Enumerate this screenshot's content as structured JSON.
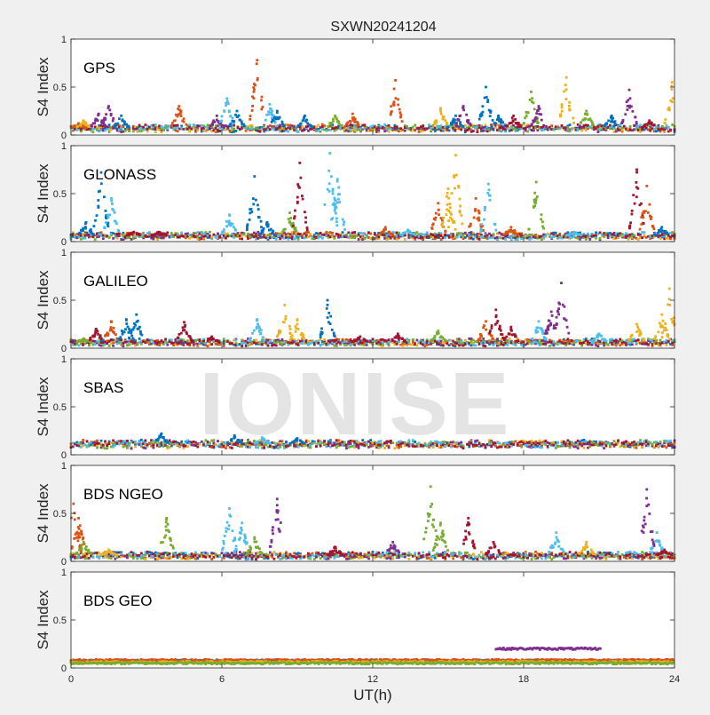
{
  "chart_data": {
    "type": "scatter",
    "title": "SXWN20241204",
    "xlabel": "UT(h)",
    "ylabel": "S4 Index",
    "xlim": [
      0,
      24
    ],
    "ylim": [
      0,
      1
    ],
    "xticks": [
      "0",
      "6",
      "12",
      "18",
      "24"
    ],
    "yticks": [
      "0",
      "0.5",
      "1"
    ],
    "colors": [
      "#0072BD",
      "#D95319",
      "#EDB120",
      "#7E2F8E",
      "#77AC30",
      "#4DBEEE",
      "#A2142F"
    ],
    "panels": [
      {
        "name": "GPS",
        "baseline": 0.07,
        "peaks": [
          {
            "x": 0.3,
            "y": 0.12,
            "c": 1
          },
          {
            "x": 0.5,
            "y": 0.15,
            "c": 2
          },
          {
            "x": 1.1,
            "y": 0.22,
            "c": 3
          },
          {
            "x": 1.5,
            "y": 0.3,
            "c": 3
          },
          {
            "x": 2.0,
            "y": 0.2,
            "c": 0
          },
          {
            "x": 4.3,
            "y": 0.3,
            "c": 1
          },
          {
            "x": 5.8,
            "y": 0.2,
            "c": 3
          },
          {
            "x": 6.2,
            "y": 0.38,
            "c": 5
          },
          {
            "x": 6.6,
            "y": 0.25,
            "c": 0
          },
          {
            "x": 7.4,
            "y": 0.78,
            "c": 1
          },
          {
            "x": 7.9,
            "y": 0.32,
            "c": 5
          },
          {
            "x": 8.2,
            "y": 0.25,
            "c": 0
          },
          {
            "x": 9.3,
            "y": 0.2,
            "c": 0
          },
          {
            "x": 10.5,
            "y": 0.2,
            "c": 4
          },
          {
            "x": 11.2,
            "y": 0.22,
            "c": 1
          },
          {
            "x": 12.9,
            "y": 0.57,
            "c": 1
          },
          {
            "x": 14.7,
            "y": 0.28,
            "c": 2
          },
          {
            "x": 15.3,
            "y": 0.2,
            "c": 0
          },
          {
            "x": 15.6,
            "y": 0.3,
            "c": 3
          },
          {
            "x": 16.5,
            "y": 0.5,
            "c": 0
          },
          {
            "x": 17.0,
            "y": 0.2,
            "c": 0
          },
          {
            "x": 17.6,
            "y": 0.2,
            "c": 6
          },
          {
            "x": 18.3,
            "y": 0.45,
            "c": 4
          },
          {
            "x": 18.6,
            "y": 0.3,
            "c": 3
          },
          {
            "x": 19.7,
            "y": 0.6,
            "c": 2
          },
          {
            "x": 20.5,
            "y": 0.25,
            "c": 4
          },
          {
            "x": 21.5,
            "y": 0.2,
            "c": 0
          },
          {
            "x": 22.2,
            "y": 0.47,
            "c": 3
          },
          {
            "x": 23.0,
            "y": 0.15,
            "c": 6
          },
          {
            "x": 23.9,
            "y": 0.55,
            "c": 2
          }
        ]
      },
      {
        "name": "GLONASS",
        "baseline": 0.06,
        "peaks": [
          {
            "x": 0.6,
            "y": 0.2,
            "c": 0
          },
          {
            "x": 1.2,
            "y": 0.72,
            "c": 0
          },
          {
            "x": 1.6,
            "y": 0.45,
            "c": 5
          },
          {
            "x": 2.5,
            "y": 0.1,
            "c": 6
          },
          {
            "x": 3.5,
            "y": 0.1,
            "c": 6
          },
          {
            "x": 6.3,
            "y": 0.28,
            "c": 5
          },
          {
            "x": 7.3,
            "y": 0.68,
            "c": 0
          },
          {
            "x": 7.8,
            "y": 0.2,
            "c": 0
          },
          {
            "x": 8.7,
            "y": 0.3,
            "c": 4
          },
          {
            "x": 9.1,
            "y": 0.82,
            "c": 6
          },
          {
            "x": 10.3,
            "y": 0.92,
            "c": 5
          },
          {
            "x": 10.6,
            "y": 0.65,
            "c": 5
          },
          {
            "x": 12.5,
            "y": 0.15,
            "c": 1
          },
          {
            "x": 13.4,
            "y": 0.12,
            "c": 5
          },
          {
            "x": 14.6,
            "y": 0.4,
            "c": 1
          },
          {
            "x": 15.0,
            "y": 0.55,
            "c": 2
          },
          {
            "x": 15.3,
            "y": 0.9,
            "c": 2
          },
          {
            "x": 16.1,
            "y": 0.45,
            "c": 1
          },
          {
            "x": 16.6,
            "y": 0.6,
            "c": 5
          },
          {
            "x": 17.5,
            "y": 0.15,
            "c": 1
          },
          {
            "x": 18.5,
            "y": 0.62,
            "c": 4
          },
          {
            "x": 20.0,
            "y": 0.1,
            "c": 5
          },
          {
            "x": 22.5,
            "y": 0.75,
            "c": 6
          },
          {
            "x": 22.9,
            "y": 0.58,
            "c": 1
          },
          {
            "x": 23.5,
            "y": 0.15,
            "c": 0
          }
        ]
      },
      {
        "name": "GALILEO",
        "baseline": 0.06,
        "peaks": [
          {
            "x": 0.5,
            "y": 0.1,
            "c": 4
          },
          {
            "x": 1.0,
            "y": 0.2,
            "c": 6
          },
          {
            "x": 1.6,
            "y": 0.28,
            "c": 1
          },
          {
            "x": 2.2,
            "y": 0.3,
            "c": 0
          },
          {
            "x": 2.6,
            "y": 0.35,
            "c": 0
          },
          {
            "x": 4.5,
            "y": 0.27,
            "c": 6
          },
          {
            "x": 5.6,
            "y": 0.12,
            "c": 6
          },
          {
            "x": 7.4,
            "y": 0.3,
            "c": 5
          },
          {
            "x": 8.5,
            "y": 0.45,
            "c": 2
          },
          {
            "x": 9.0,
            "y": 0.3,
            "c": 2
          },
          {
            "x": 10.2,
            "y": 0.5,
            "c": 0
          },
          {
            "x": 11.5,
            "y": 0.12,
            "c": 6
          },
          {
            "x": 13.0,
            "y": 0.15,
            "c": 6
          },
          {
            "x": 14.6,
            "y": 0.18,
            "c": 4
          },
          {
            "x": 16.5,
            "y": 0.28,
            "c": 1
          },
          {
            "x": 16.9,
            "y": 0.4,
            "c": 6
          },
          {
            "x": 17.5,
            "y": 0.22,
            "c": 6
          },
          {
            "x": 18.6,
            "y": 0.28,
            "c": 5
          },
          {
            "x": 19.1,
            "y": 0.38,
            "c": 3
          },
          {
            "x": 19.5,
            "y": 0.68,
            "c": 3
          },
          {
            "x": 21.0,
            "y": 0.15,
            "c": 5
          },
          {
            "x": 22.5,
            "y": 0.25,
            "c": 2
          },
          {
            "x": 23.5,
            "y": 0.35,
            "c": 2
          },
          {
            "x": 23.8,
            "y": 0.62,
            "c": 2
          }
        ]
      },
      {
        "name": "SBAS",
        "baseline": 0.11,
        "peaks": [
          {
            "x": 3.6,
            "y": 0.22,
            "c": 0
          },
          {
            "x": 6.5,
            "y": 0.2,
            "c": 0
          },
          {
            "x": 7.6,
            "y": 0.18,
            "c": 5
          },
          {
            "x": 9.0,
            "y": 0.17,
            "c": 0
          }
        ]
      },
      {
        "name": "BDS NGEO",
        "baseline": 0.06,
        "peaks": [
          {
            "x": 0.1,
            "y": 0.6,
            "c": 1
          },
          {
            "x": 0.3,
            "y": 0.45,
            "c": 1
          },
          {
            "x": 0.5,
            "y": 0.2,
            "c": 4
          },
          {
            "x": 1.5,
            "y": 0.12,
            "c": 2
          },
          {
            "x": 3.8,
            "y": 0.45,
            "c": 4
          },
          {
            "x": 6.3,
            "y": 0.55,
            "c": 5
          },
          {
            "x": 6.8,
            "y": 0.4,
            "c": 5
          },
          {
            "x": 7.3,
            "y": 0.25,
            "c": 4
          },
          {
            "x": 8.2,
            "y": 0.65,
            "c": 3
          },
          {
            "x": 10.5,
            "y": 0.15,
            "c": 6
          },
          {
            "x": 12.8,
            "y": 0.2,
            "c": 3
          },
          {
            "x": 14.3,
            "y": 0.78,
            "c": 4
          },
          {
            "x": 14.7,
            "y": 0.4,
            "c": 4
          },
          {
            "x": 15.8,
            "y": 0.45,
            "c": 6
          },
          {
            "x": 16.8,
            "y": 0.2,
            "c": 6
          },
          {
            "x": 19.3,
            "y": 0.3,
            "c": 5
          },
          {
            "x": 20.5,
            "y": 0.2,
            "c": 2
          },
          {
            "x": 22.9,
            "y": 0.75,
            "c": 3
          },
          {
            "x": 23.3,
            "y": 0.3,
            "c": 5
          },
          {
            "x": 23.6,
            "y": 0.12,
            "c": 6
          }
        ]
      },
      {
        "name": "BDS GEO",
        "baseline": 0.07,
        "bands": [
          {
            "x0": 0,
            "x1": 24,
            "y": 0.075,
            "c": 0
          },
          {
            "x0": 0,
            "x1": 24,
            "y": 0.08,
            "c": 1
          },
          {
            "x0": 0,
            "x1": 24,
            "y": 0.06,
            "c": 2
          },
          {
            "x0": 0,
            "x1": 24,
            "y": 0.05,
            "c": 4
          },
          {
            "x0": 16.9,
            "x1": 21.1,
            "y": 0.2,
            "c": 3
          }
        ],
        "peaks": []
      }
    ]
  },
  "watermark": "IONISE"
}
